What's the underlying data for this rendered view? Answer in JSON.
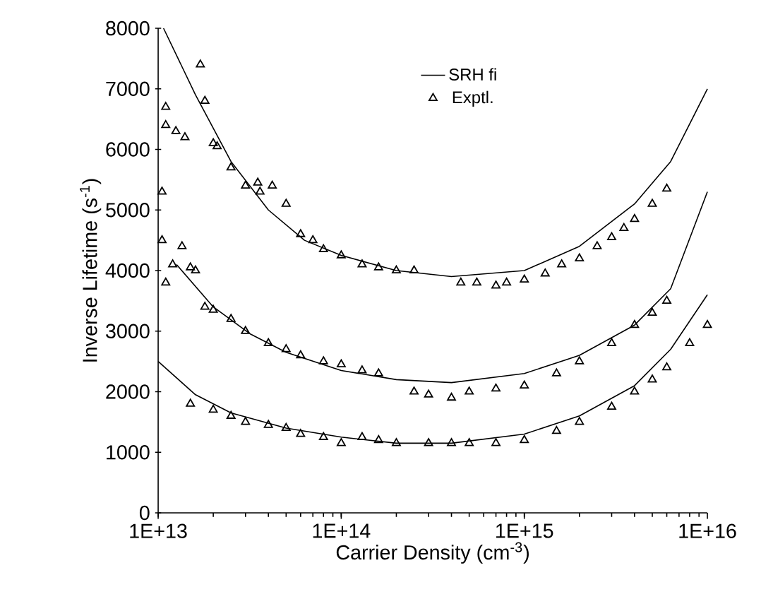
{
  "chart_data": {
    "type": "line",
    "xlabel": "Carrier Density (cm$^{-3}$)",
    "ylabel": "Inverse Lifetime (s$^{-1}$)",
    "log": "x",
    "grid": false,
    "legend": "top",
    "xlim": [
      10000000000000.0,
      1e+16
    ],
    "xticks": [
      {
        "value": 10000000000000.0,
        "label": "1E+13"
      },
      {
        "value": 100000000000000.0,
        "label": "1E+14"
      },
      {
        "value": 1000000000000000.0,
        "label": "1E+15"
      },
      {
        "value": 1e+16,
        "label": "1E+16"
      }
    ],
    "ylim": [
      0,
      8000
    ],
    "yticks": [
      0,
      1000,
      2000,
      3000,
      4000,
      5000,
      6000,
      7000,
      8000
    ],
    "series": [
      {
        "name": "SRH fi",
        "color": "#000000",
        "marker": "none",
        "x": [
          10700000000000.0,
          16000000000000.0,
          25000000000000.0,
          40000000000000.0,
          63000000000000.0,
          100000000000000.0,
          200000000000000.0,
          400000000000000.0,
          1000000000000000.0,
          2000000000000000.0,
          4000000000000000.0,
          6300000000000000.0,
          1e+16
        ],
        "values": [
          8000,
          6900,
          5800,
          5000,
          4500,
          4250,
          4000,
          3900,
          4000,
          4400,
          5100,
          5800,
          7000
        ]
      },
      {
        "color": "#000000",
        "marker": "none",
        "x": [
          12600000000000.0,
          20000000000000.0,
          32000000000000.0,
          50000000000000.0,
          100000000000000.0,
          200000000000000.0,
          400000000000000.0,
          1000000000000000.0,
          2000000000000000.0,
          4000000000000000.0,
          6300000000000000.0,
          1e+16
        ],
        "values": [
          4100,
          3400,
          2950,
          2650,
          2350,
          2200,
          2150,
          2300,
          2600,
          3100,
          3700,
          5300
        ]
      },
      {
        "color": "#000000",
        "marker": "none",
        "x": [
          10000000000000.0,
          16000000000000.0,
          25000000000000.0,
          50000000000000.0,
          100000000000000.0,
          200000000000000.0,
          400000000000000.0,
          1000000000000000.0,
          2000000000000000.0,
          4000000000000000.0,
          6300000000000000.0,
          1e+16
        ],
        "values": [
          2500,
          1950,
          1650,
          1400,
          1250,
          1150,
          1150,
          1300,
          1600,
          2100,
          2700,
          3600
        ]
      },
      {
        "name": "Exptl.",
        "type": "scatter",
        "color": "#000000",
        "marker": "triangle",
        "x": [
          11000000000000.0,
          11000000000000.0,
          12500000000000.0,
          14000000000000.0,
          17000000000000.0,
          18000000000000.0,
          20000000000000.0,
          21000000000000.0,
          25000000000000.0,
          30000000000000.0,
          35000000000000.0,
          36000000000000.0,
          42000000000000.0,
          50000000000000.0,
          60000000000000.0,
          70000000000000.0,
          80000000000000.0,
          100000000000000.0,
          130000000000000.0,
          160000000000000.0,
          200000000000000.0,
          250000000000000.0,
          450000000000000.0,
          550000000000000.0,
          700000000000000.0,
          800000000000000.0,
          1000000000000000.0,
          1300000000000000.0,
          1600000000000000.0,
          2000000000000000.0,
          2500000000000000.0,
          3000000000000000.0,
          3500000000000000.0,
          4000000000000000.0,
          5000000000000000.0,
          6000000000000000.0
        ],
        "values": [
          6700,
          6400,
          6300,
          6200,
          7400,
          6800,
          6100,
          6050,
          5700,
          5400,
          5450,
          5300,
          5400,
          5100,
          4600,
          4500,
          4350,
          4250,
          4100,
          4050,
          4000,
          4000,
          3800,
          3800,
          3750,
          3800,
          3850,
          3950,
          4100,
          4200,
          4400,
          4550,
          4700,
          4850,
          5100,
          5350
        ]
      },
      {
        "type": "scatter",
        "color": "#000000",
        "marker": "triangle",
        "x": [
          10500000000000.0,
          10500000000000.0,
          11000000000000.0,
          12000000000000.0,
          13500000000000.0,
          15000000000000.0,
          16000000000000.0,
          18000000000000.0,
          20000000000000.0,
          25000000000000.0,
          30000000000000.0,
          40000000000000.0,
          50000000000000.0,
          60000000000000.0,
          80000000000000.0,
          100000000000000.0,
          130000000000000.0,
          160000000000000.0,
          250000000000000.0,
          300000000000000.0,
          400000000000000.0,
          500000000000000.0,
          700000000000000.0,
          1000000000000000.0,
          1500000000000000.0,
          2000000000000000.0,
          3000000000000000.0,
          4000000000000000.0,
          5000000000000000.0,
          6000000000000000.0
        ],
        "values": [
          5300,
          4500,
          3800,
          4100,
          4400,
          4050,
          4000,
          3400,
          3350,
          3200,
          3000,
          2800,
          2700,
          2600,
          2500,
          2450,
          2350,
          2300,
          2000,
          1950,
          1900,
          2000,
          2050,
          2100,
          2300,
          2500,
          2800,
          3100,
          3300,
          3500
        ]
      },
      {
        "type": "scatter",
        "color": "#000000",
        "marker": "triangle",
        "x": [
          15000000000000.0,
          20000000000000.0,
          25000000000000.0,
          30000000000000.0,
          40000000000000.0,
          50000000000000.0,
          60000000000000.0,
          80000000000000.0,
          100000000000000.0,
          130000000000000.0,
          160000000000000.0,
          200000000000000.0,
          300000000000000.0,
          400000000000000.0,
          500000000000000.0,
          700000000000000.0,
          1000000000000000.0,
          1500000000000000.0,
          2000000000000000.0,
          3000000000000000.0,
          4000000000000000.0,
          5000000000000000.0,
          6000000000000000.0,
          8000000000000000.0,
          1e+16
        ],
        "values": [
          1800,
          1700,
          1600,
          1500,
          1450,
          1400,
          1300,
          1250,
          1150,
          1250,
          1200,
          1150,
          1150,
          1150,
          1150,
          1150,
          1200,
          1350,
          1500,
          1750,
          2000,
          2200,
          2400,
          2800,
          3100
        ]
      }
    ]
  }
}
